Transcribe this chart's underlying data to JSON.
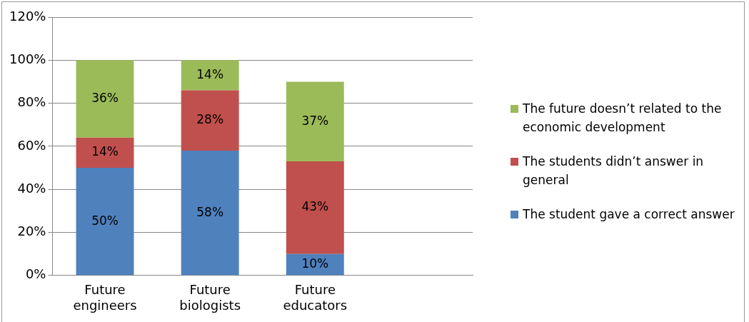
{
  "chart_data": {
    "type": "bar",
    "stacked": true,
    "categories": [
      "Future engineers",
      "Future biologists",
      "Future educators",
      null
    ],
    "series": [
      {
        "name": "The student gave a correct answer",
        "color": "#4f81bd",
        "values": [
          50,
          58,
          10,
          null
        ],
        "value_labels": [
          "50%",
          "58%",
          "10%",
          null
        ]
      },
      {
        "name": "The students didn’t answer in general",
        "color": "#c0504d",
        "values": [
          14,
          28,
          43,
          null
        ],
        "value_labels": [
          "14%",
          "28%",
          "43%",
          null
        ]
      },
      {
        "name": "The future doesn’t related to the economic development",
        "color": "#9bbb59",
        "values": [
          36,
          14,
          37,
          null
        ],
        "value_labels": [
          "36%",
          "14%",
          "37%",
          null
        ]
      }
    ],
    "ylim": [
      0,
      120
    ],
    "yticks": [
      {
        "value": 0,
        "label": "0%"
      },
      {
        "value": 20,
        "label": "20%"
      },
      {
        "value": 40,
        "label": "40%"
      },
      {
        "value": 60,
        "label": "60%"
      },
      {
        "value": 80,
        "label": "80%"
      },
      {
        "value": 100,
        "label": "100%"
      },
      {
        "value": 120,
        "label": "120%"
      }
    ],
    "grid": "y",
    "legend": "right"
  }
}
